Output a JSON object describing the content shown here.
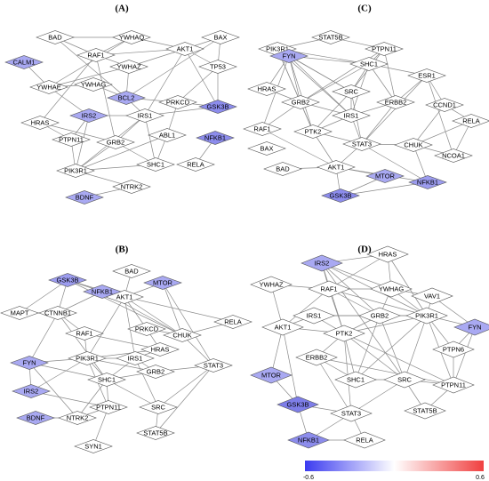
{
  "panels": [
    {
      "label": "(A)",
      "nodes": [
        {
          "label": "BAD",
          "color": "#ffffff"
        },
        {
          "label": "YWHAQ",
          "color": "#ffffff"
        },
        {
          "label": "AKT1",
          "color": "#ffffff"
        },
        {
          "label": "BAX",
          "color": "#ffffff"
        },
        {
          "label": "RAF1",
          "color": "#ffffff"
        },
        {
          "label": "CALM1",
          "color": "#a9a9f2"
        },
        {
          "label": "YWHAZ",
          "color": "#ffffff"
        },
        {
          "label": "TP53",
          "color": "#ffffff"
        },
        {
          "label": "YWHAE",
          "color": "#ffffff"
        },
        {
          "label": "YWHAG",
          "color": "#ffffff"
        },
        {
          "label": "BCL2",
          "color": "#a9a9f2"
        },
        {
          "label": "PRKCD",
          "color": "#ffffff"
        },
        {
          "label": "GSK3B",
          "color": "#8c8cec"
        },
        {
          "label": "HRAS",
          "color": "#ffffff"
        },
        {
          "label": "IRS2",
          "color": "#a9a9f2"
        },
        {
          "label": "IRS1",
          "color": "#ffffff"
        },
        {
          "label": "ABL1",
          "color": "#ffffff"
        },
        {
          "label": "NFKB1",
          "color": "#8c8cec"
        },
        {
          "label": "PTPN11",
          "color": "#ffffff"
        },
        {
          "label": "GRB2",
          "color": "#ffffff"
        },
        {
          "label": "SHC1",
          "color": "#ffffff"
        },
        {
          "label": "RELA",
          "color": "#ffffff"
        },
        {
          "label": "PIK3R1",
          "color": "#ffffff"
        },
        {
          "label": "NTRK2",
          "color": "#ffffff"
        },
        {
          "label": "BDNF",
          "color": "#a9a9f2"
        }
      ]
    },
    {
      "label": "(B)",
      "nodes": [
        {
          "label": "BAD",
          "color": "#ffffff"
        },
        {
          "label": "AKT1",
          "color": "#ffffff"
        },
        {
          "label": "GSK3B",
          "color": "#9c9cef"
        },
        {
          "label": "NFKB1",
          "color": "#a9a9f2"
        },
        {
          "label": "MTOR",
          "color": "#a9a9f2"
        },
        {
          "label": "MAPT",
          "color": "#ffffff"
        },
        {
          "label": "CTNNB1",
          "color": "#ffffff"
        },
        {
          "label": "RAF1",
          "color": "#ffffff"
        },
        {
          "label": "PRKCD",
          "color": "#ffffff"
        },
        {
          "label": "CHUK",
          "color": "#ffffff"
        },
        {
          "label": "RELA",
          "color": "#ffffff"
        },
        {
          "label": "HRAS",
          "color": "#ffffff"
        },
        {
          "label": "FYN",
          "color": "#a9a9f2"
        },
        {
          "label": "PIK3R1",
          "color": "#ffffff"
        },
        {
          "label": "IRS1",
          "color": "#ffffff"
        },
        {
          "label": "GRB2",
          "color": "#ffffff"
        },
        {
          "label": "STAT3",
          "color": "#ffffff"
        },
        {
          "label": "SHC1",
          "color": "#ffffff"
        },
        {
          "label": "IRS2",
          "color": "#a9a9f2"
        },
        {
          "label": "PTPN11",
          "color": "#ffffff"
        },
        {
          "label": "SRC",
          "color": "#ffffff"
        },
        {
          "label": "NTRK2",
          "color": "#ffffff"
        },
        {
          "label": "BDNF",
          "color": "#a9a9f2"
        },
        {
          "label": "STAT5B",
          "color": "#ffffff"
        },
        {
          "label": "SYN1",
          "color": "#ffffff"
        }
      ]
    },
    {
      "label": "(C)",
      "nodes": [
        {
          "label": "STAT5B",
          "color": "#ffffff"
        },
        {
          "label": "PIK3R1",
          "color": "#ffffff"
        },
        {
          "label": "PTPN11",
          "color": "#ffffff"
        },
        {
          "label": "FYN",
          "color": "#a9a9f2"
        },
        {
          "label": "SHC1",
          "color": "#ffffff"
        },
        {
          "label": "ESR1",
          "color": "#ffffff"
        },
        {
          "label": "HRAS",
          "color": "#ffffff"
        },
        {
          "label": "SRC",
          "color": "#ffffff"
        },
        {
          "label": "GRB2",
          "color": "#ffffff"
        },
        {
          "label": "ERBB2",
          "color": "#ffffff"
        },
        {
          "label": "CCND1",
          "color": "#ffffff"
        },
        {
          "label": "IRS1",
          "color": "#ffffff"
        },
        {
          "label": "RAF1",
          "color": "#ffffff"
        },
        {
          "label": "PTK2",
          "color": "#ffffff"
        },
        {
          "label": "RELA",
          "color": "#ffffff"
        },
        {
          "label": "STAT3",
          "color": "#ffffff"
        },
        {
          "label": "CHUK",
          "color": "#ffffff"
        },
        {
          "label": "NCOA1",
          "color": "#ffffff"
        },
        {
          "label": "BAX",
          "color": "#ffffff"
        },
        {
          "label": "BAD",
          "color": "#ffffff"
        },
        {
          "label": "AKT1",
          "color": "#ffffff"
        },
        {
          "label": "MTOR",
          "color": "#a9a9f2"
        },
        {
          "label": "GSK3B",
          "color": "#8c8cec"
        },
        {
          "label": "NFKB1",
          "color": "#9c9cef"
        }
      ]
    },
    {
      "label": "(D)",
      "nodes": [
        {
          "label": "HRAS",
          "color": "#ffffff"
        },
        {
          "label": "IRS2",
          "color": "#a9a9f2"
        },
        {
          "label": "YWHAZ",
          "color": "#ffffff"
        },
        {
          "label": "RAF1",
          "color": "#ffffff"
        },
        {
          "label": "YWHAG",
          "color": "#ffffff"
        },
        {
          "label": "VAV1",
          "color": "#ffffff"
        },
        {
          "label": "IRS1",
          "color": "#ffffff"
        },
        {
          "label": "GRB2",
          "color": "#ffffff"
        },
        {
          "label": "PIK3R1",
          "color": "#ffffff"
        },
        {
          "label": "FYN",
          "color": "#a9a9f2"
        },
        {
          "label": "AKT1",
          "color": "#ffffff"
        },
        {
          "label": "PTK2",
          "color": "#ffffff"
        },
        {
          "label": "PTPN6",
          "color": "#ffffff"
        },
        {
          "label": "ERBB2",
          "color": "#ffffff"
        },
        {
          "label": "SHC1",
          "color": "#ffffff"
        },
        {
          "label": "SRC",
          "color": "#ffffff"
        },
        {
          "label": "PTPN11",
          "color": "#ffffff"
        },
        {
          "label": "MTOR",
          "color": "#a9a9f2"
        },
        {
          "label": "GSK3B",
          "color": "#7e7ee9"
        },
        {
          "label": "STAT3",
          "color": "#ffffff"
        },
        {
          "label": "STAT5B",
          "color": "#ffffff"
        },
        {
          "label": "NFKB1",
          "color": "#8c8cec"
        },
        {
          "label": "RELA",
          "color": "#ffffff"
        }
      ]
    }
  ],
  "colorbar": {
    "min": -0.6,
    "max": 0.6
  }
}
